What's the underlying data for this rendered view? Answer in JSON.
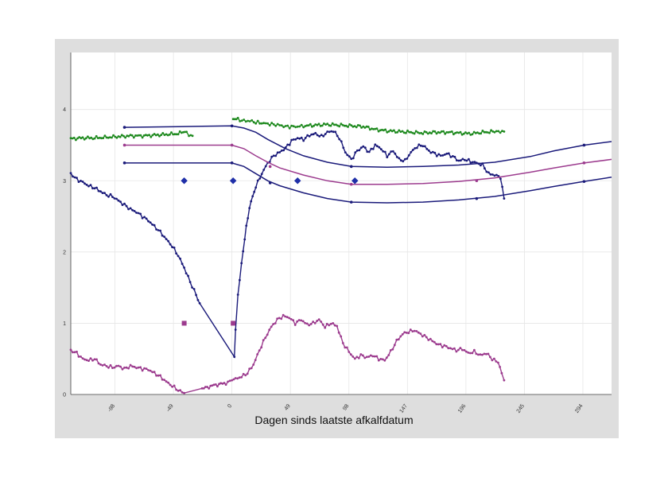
{
  "chart_data": {
    "type": "line",
    "title": "",
    "xlabel": "Dagen sinds laatste afkalfdatum",
    "ylabel": "",
    "xlim": [
      -135,
      318
    ],
    "ylim": [
      0,
      4.8
    ],
    "x_ticks": [
      -98,
      -49,
      0,
      49,
      98,
      147,
      196,
      245,
      294
    ],
    "x_tick_labels": [
      "-98",
      "-49",
      "0",
      "49",
      "98",
      "147",
      "196",
      "245",
      "294"
    ],
    "y_ticks": [
      0,
      1,
      2,
      3,
      4
    ],
    "y_tick_labels": [
      "0",
      "1",
      "2",
      "3",
      "4"
    ],
    "grid": true,
    "legend": "none",
    "series": [
      {
        "name": "green-daily",
        "color": "#1f8a1f",
        "style": "dense-markers",
        "segments": [
          [
            [
              -135,
              3.59
            ],
            [
              -125,
              3.6
            ],
            [
              -115,
              3.6
            ],
            [
              -105,
              3.61
            ],
            [
              -95,
              3.62
            ],
            [
              -85,
              3.63
            ],
            [
              -75,
              3.63
            ],
            [
              -65,
              3.64
            ],
            [
              -55,
              3.65
            ],
            [
              -45,
              3.66
            ],
            [
              -38,
              3.7
            ],
            [
              -36,
              3.64
            ],
            [
              -33,
              3.63
            ]
          ],
          [
            [
              1,
              3.87
            ],
            [
              5,
              3.86
            ],
            [
              10,
              3.84
            ],
            [
              15,
              3.84
            ],
            [
              20,
              3.82
            ],
            [
              25,
              3.81
            ],
            [
              30,
              3.8
            ],
            [
              35,
              3.79
            ],
            [
              40,
              3.78
            ],
            [
              45,
              3.76
            ],
            [
              50,
              3.76
            ],
            [
              55,
              3.76
            ],
            [
              60,
              3.77
            ],
            [
              70,
              3.78
            ],
            [
              80,
              3.79
            ],
            [
              90,
              3.78
            ],
            [
              100,
              3.77
            ],
            [
              110,
              3.76
            ],
            [
              120,
              3.72
            ],
            [
              130,
              3.7
            ],
            [
              140,
              3.69
            ],
            [
              150,
              3.68
            ],
            [
              160,
              3.67
            ],
            [
              170,
              3.68
            ],
            [
              180,
              3.68
            ],
            [
              190,
              3.67
            ],
            [
              200,
              3.66
            ],
            [
              210,
              3.68
            ],
            [
              220,
              3.69
            ],
            [
              228,
              3.69
            ]
          ]
        ]
      },
      {
        "name": "navy-daily",
        "color": "#1a1a7a",
        "style": "dense-markers",
        "points": [
          [
            -135,
            3.1
          ],
          [
            -130,
            3.02
          ],
          [
            -125,
            2.98
          ],
          [
            -120,
            2.93
          ],
          [
            -115,
            2.9
          ],
          [
            -110,
            2.85
          ],
          [
            -105,
            2.8
          ],
          [
            -100,
            2.78
          ],
          [
            -95,
            2.72
          ],
          [
            -90,
            2.66
          ],
          [
            -85,
            2.6
          ],
          [
            -80,
            2.56
          ],
          [
            -75,
            2.5
          ],
          [
            -70,
            2.44
          ],
          [
            -65,
            2.36
          ],
          [
            -60,
            2.28
          ],
          [
            -55,
            2.18
          ],
          [
            -50,
            2.08
          ],
          [
            -45,
            1.95
          ],
          [
            -40,
            1.78
          ],
          [
            -35,
            1.58
          ],
          [
            -30,
            1.4
          ],
          [
            -27,
            1.28
          ],
          [
            2,
            0.55
          ],
          [
            3,
            0.9
          ],
          [
            5,
            1.38
          ],
          [
            8,
            1.85
          ],
          [
            12,
            2.35
          ],
          [
            16,
            2.72
          ],
          [
            20,
            2.92
          ],
          [
            25,
            3.1
          ],
          [
            30,
            3.25
          ],
          [
            35,
            3.35
          ],
          [
            40,
            3.4
          ],
          [
            45,
            3.46
          ],
          [
            50,
            3.56
          ],
          [
            55,
            3.6
          ],
          [
            60,
            3.58
          ],
          [
            65,
            3.64
          ],
          [
            70,
            3.66
          ],
          [
            75,
            3.62
          ],
          [
            80,
            3.68
          ],
          [
            85,
            3.7
          ],
          [
            90,
            3.6
          ],
          [
            95,
            3.4
          ],
          [
            100,
            3.3
          ],
          [
            105,
            3.42
          ],
          [
            110,
            3.48
          ],
          [
            115,
            3.4
          ],
          [
            120,
            3.5
          ],
          [
            125,
            3.45
          ],
          [
            130,
            3.35
          ],
          [
            135,
            3.42
          ],
          [
            140,
            3.3
          ],
          [
            145,
            3.28
          ],
          [
            150,
            3.4
          ],
          [
            155,
            3.48
          ],
          [
            160,
            3.5
          ],
          [
            165,
            3.42
          ],
          [
            170,
            3.38
          ],
          [
            175,
            3.35
          ],
          [
            180,
            3.38
          ],
          [
            185,
            3.34
          ],
          [
            190,
            3.28
          ],
          [
            195,
            3.3
          ],
          [
            200,
            3.27
          ],
          [
            205,
            3.25
          ],
          [
            210,
            3.22
          ],
          [
            215,
            3.1
          ],
          [
            220,
            3.08
          ],
          [
            225,
            3.05
          ],
          [
            228,
            2.75
          ]
        ]
      },
      {
        "name": "purple-daily",
        "color": "#9c3b8e",
        "style": "dense-markers",
        "points": [
          [
            -135,
            0.62
          ],
          [
            -130,
            0.58
          ],
          [
            -125,
            0.5
          ],
          [
            -120,
            0.48
          ],
          [
            -115,
            0.5
          ],
          [
            -110,
            0.42
          ],
          [
            -105,
            0.4
          ],
          [
            -100,
            0.38
          ],
          [
            -95,
            0.4
          ],
          [
            -90,
            0.36
          ],
          [
            -85,
            0.4
          ],
          [
            -80,
            0.38
          ],
          [
            -75,
            0.36
          ],
          [
            -70,
            0.35
          ],
          [
            -65,
            0.3
          ],
          [
            -60,
            0.25
          ],
          [
            -55,
            0.18
          ],
          [
            -50,
            0.12
          ],
          [
            -45,
            0.06
          ],
          [
            -40,
            0.02
          ],
          [
            -25,
            0.08
          ],
          [
            -15,
            0.13
          ],
          [
            -5,
            0.16
          ],
          [
            0,
            0.2
          ],
          [
            3,
            0.22
          ],
          [
            8,
            0.25
          ],
          [
            13,
            0.3
          ],
          [
            18,
            0.42
          ],
          [
            23,
            0.62
          ],
          [
            28,
            0.8
          ],
          [
            33,
            0.95
          ],
          [
            38,
            1.05
          ],
          [
            43,
            1.1
          ],
          [
            48,
            1.08
          ],
          [
            53,
            1.0
          ],
          [
            58,
            1.05
          ],
          [
            63,
            0.98
          ],
          [
            68,
            1.0
          ],
          [
            73,
            1.05
          ],
          [
            78,
            0.95
          ],
          [
            83,
            1.0
          ],
          [
            88,
            0.96
          ],
          [
            93,
            0.72
          ],
          [
            98,
            0.6
          ],
          [
            103,
            0.5
          ],
          [
            108,
            0.55
          ],
          [
            113,
            0.52
          ],
          [
            118,
            0.55
          ],
          [
            123,
            0.5
          ],
          [
            128,
            0.48
          ],
          [
            133,
            0.6
          ],
          [
            138,
            0.75
          ],
          [
            143,
            0.85
          ],
          [
            148,
            0.88
          ],
          [
            153,
            0.9
          ],
          [
            158,
            0.85
          ],
          [
            163,
            0.8
          ],
          [
            168,
            0.75
          ],
          [
            173,
            0.7
          ],
          [
            178,
            0.68
          ],
          [
            183,
            0.65
          ],
          [
            188,
            0.62
          ],
          [
            193,
            0.64
          ],
          [
            198,
            0.58
          ],
          [
            203,
            0.6
          ],
          [
            208,
            0.55
          ],
          [
            213,
            0.58
          ],
          [
            218,
            0.5
          ],
          [
            223,
            0.45
          ],
          [
            226,
            0.3
          ],
          [
            228,
            0.2
          ]
        ]
      },
      {
        "name": "navy-upper-curve",
        "color": "#1a1a7a",
        "style": "line-sparse-markers",
        "points": [
          [
            -90,
            3.75
          ],
          [
            -45,
            3.76
          ],
          [
            0,
            3.77
          ],
          [
            10,
            3.74
          ],
          [
            20,
            3.68
          ],
          [
            30,
            3.58
          ],
          [
            45,
            3.45
          ],
          [
            60,
            3.35
          ],
          [
            80,
            3.26
          ],
          [
            100,
            3.2
          ],
          [
            130,
            3.19
          ],
          [
            160,
            3.2
          ],
          [
            190,
            3.22
          ],
          [
            220,
            3.26
          ],
          [
            250,
            3.34
          ],
          [
            270,
            3.42
          ],
          [
            295,
            3.5
          ],
          [
            318,
            3.55
          ]
        ],
        "markers": [
          [
            -90,
            3.75
          ],
          [
            0,
            3.77
          ],
          [
            100,
            3.2
          ],
          [
            295,
            3.5
          ]
        ]
      },
      {
        "name": "purple-mid-curve",
        "color": "#9c3b8e",
        "style": "line-sparse-markers",
        "points": [
          [
            -90,
            3.5
          ],
          [
            -45,
            3.5
          ],
          [
            0,
            3.5
          ],
          [
            10,
            3.45
          ],
          [
            20,
            3.35
          ],
          [
            30,
            3.26
          ],
          [
            40,
            3.18
          ],
          [
            60,
            3.08
          ],
          [
            80,
            3.0
          ],
          [
            100,
            2.95
          ],
          [
            130,
            2.95
          ],
          [
            160,
            2.96
          ],
          [
            190,
            2.99
          ],
          [
            220,
            3.04
          ],
          [
            250,
            3.12
          ],
          [
            270,
            3.18
          ],
          [
            295,
            3.25
          ],
          [
            318,
            3.3
          ]
        ],
        "markers": [
          [
            -90,
            3.5
          ],
          [
            0,
            3.5
          ],
          [
            32,
            3.2
          ],
          [
            100,
            2.95
          ],
          [
            205,
            3.0
          ],
          [
            295,
            3.25
          ]
        ]
      },
      {
        "name": "navy-lower-curve",
        "color": "#1a1a7a",
        "style": "line-sparse-markers",
        "points": [
          [
            -90,
            3.25
          ],
          [
            -45,
            3.25
          ],
          [
            0,
            3.25
          ],
          [
            10,
            3.2
          ],
          [
            20,
            3.1
          ],
          [
            30,
            3.0
          ],
          [
            40,
            2.93
          ],
          [
            60,
            2.83
          ],
          [
            80,
            2.75
          ],
          [
            100,
            2.7
          ],
          [
            130,
            2.69
          ],
          [
            160,
            2.7
          ],
          [
            190,
            2.73
          ],
          [
            220,
            2.78
          ],
          [
            250,
            2.86
          ],
          [
            270,
            2.92
          ],
          [
            295,
            2.99
          ],
          [
            318,
            3.05
          ]
        ],
        "markers": [
          [
            -90,
            3.25
          ],
          [
            0,
            3.25
          ],
          [
            32,
            2.97
          ],
          [
            100,
            2.7
          ],
          [
            205,
            2.75
          ],
          [
            295,
            2.99
          ]
        ]
      },
      {
        "name": "navy-diamond-points",
        "color": "#1f2fa8",
        "style": "markers-diamond",
        "points": [
          [
            -40,
            3.0
          ],
          [
            1,
            3.0
          ],
          [
            55,
            3.0
          ],
          [
            103,
            3.0
          ]
        ]
      },
      {
        "name": "purple-square-points",
        "color": "#9c3b8e",
        "style": "markers-square",
        "points": [
          [
            -40,
            1.0
          ],
          [
            1,
            1.0
          ]
        ]
      }
    ]
  }
}
